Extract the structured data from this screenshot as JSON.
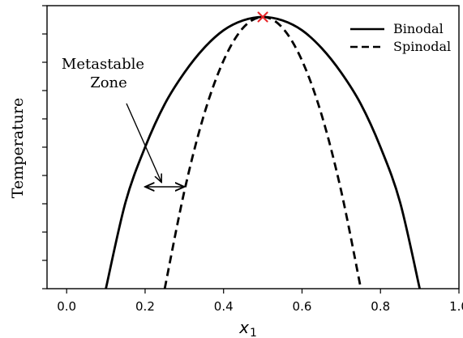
{
  "chart_data": {
    "type": "line",
    "title": "",
    "xlabel": "x",
    "xlabel_subscript": "1",
    "ylabel": "Temperature",
    "xlim": [
      -0.05,
      1.0
    ],
    "ylim": [
      0.0,
      1.0
    ],
    "x_ticks": [
      0.0,
      0.2,
      0.4,
      0.6,
      0.8,
      1.0
    ],
    "x_tick_labels": [
      "0.0",
      "0.2",
      "0.4",
      "0.6",
      "0.8",
      "1.0"
    ],
    "y_tick_values": [
      0.0,
      0.1,
      0.2,
      0.3,
      0.4,
      0.5,
      0.6,
      0.7,
      0.8,
      0.9,
      1.0
    ],
    "y_tick_labels_shown": false,
    "grid": false,
    "legend_position": "top-right",
    "series": [
      {
        "name": "Binodal",
        "style": "solid",
        "color": "#000000",
        "x": [
          0.1,
          0.15,
          0.2,
          0.25,
          0.3,
          0.35,
          0.4,
          0.45,
          0.5,
          0.55,
          0.6,
          0.65,
          0.7,
          0.75,
          0.8,
          0.85,
          0.9
        ],
        "y": [
          0.0,
          0.305,
          0.5,
          0.652,
          0.763,
          0.85,
          0.913,
          0.948,
          0.96,
          0.948,
          0.913,
          0.85,
          0.763,
          0.652,
          0.5,
          0.305,
          0.0
        ]
      },
      {
        "name": "Spinodal",
        "style": "dashed",
        "color": "#000000",
        "x": [
          0.25,
          0.3,
          0.35,
          0.4,
          0.45,
          0.5,
          0.55,
          0.6,
          0.65,
          0.7,
          0.75
        ],
        "y": [
          0.0,
          0.344,
          0.614,
          0.806,
          0.922,
          0.96,
          0.922,
          0.806,
          0.614,
          0.344,
          0.0
        ]
      }
    ],
    "critical_point": {
      "x": 0.5,
      "y": 0.96,
      "marker": "x",
      "color": "#e8282b"
    },
    "annotations": [
      {
        "text_lines": [
          "Metastable",
          "Zone"
        ],
        "points_to": {
          "x": 0.25,
          "y": 0.45
        }
      }
    ],
    "double_arrow": {
      "x_from": 0.2,
      "x_to": 0.3,
      "y": 0.36
    }
  }
}
